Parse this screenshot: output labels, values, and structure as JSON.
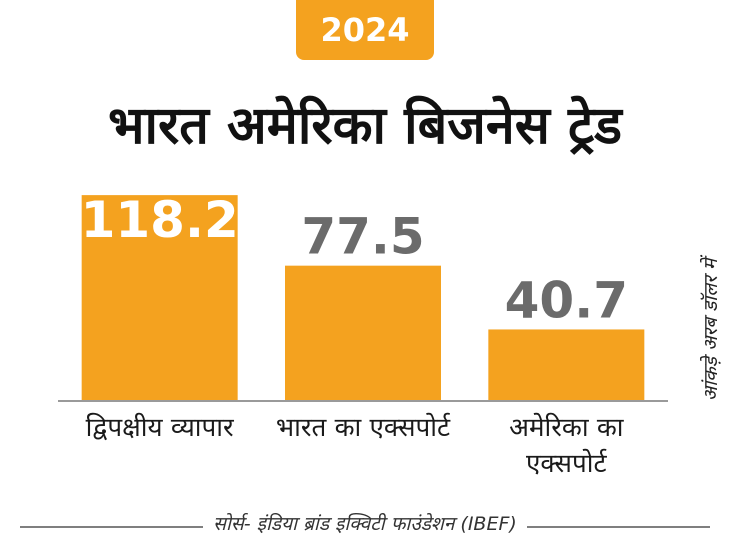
{
  "chart_data": {
    "type": "bar",
    "badge": "2024",
    "title": "भारत अमेरिका बिजनेस ट्रेड",
    "categories": [
      "द्विपक्षीय व्यापार",
      "भारत का एक्सपोर्ट",
      "अमेरिका का एक्सपोर्ट"
    ],
    "values": [
      118.2,
      77.5,
      40.7
    ],
    "color": "#f4a21f",
    "label_color": "#6b6b6b",
    "ylim": [
      0,
      120
    ],
    "y_label": "आंकड़े अरब डॉलर में",
    "source": "सोर्स- इंडिया ब्रांड इक्विटी फाउंडेशन (IBEF)"
  }
}
